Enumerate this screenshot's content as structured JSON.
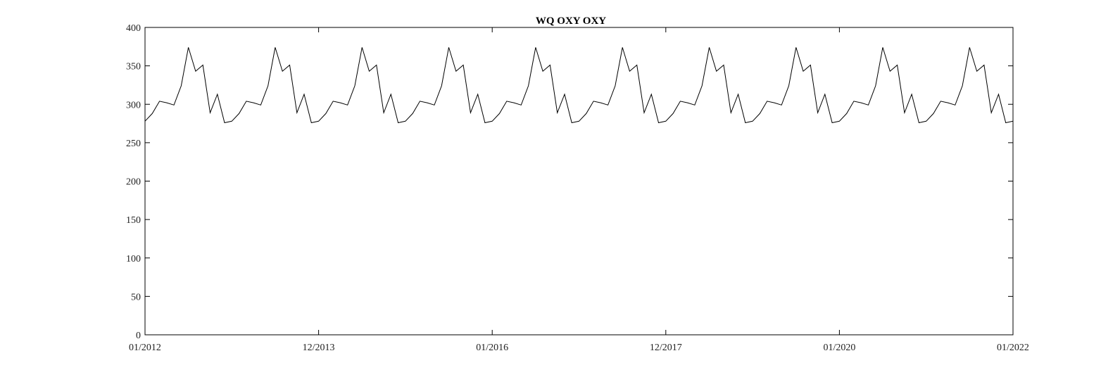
{
  "chart_data": {
    "type": "line",
    "title": "WQ OXY OXY",
    "xlabel": "",
    "ylabel": "",
    "x_start": "2012-01",
    "x_end": "2022-01",
    "x_ticks": [
      "01/2012",
      "12/2013",
      "01/2016",
      "12/2017",
      "01/2020",
      "01/2022"
    ],
    "y_ticks": [
      "0",
      "50",
      "100",
      "150",
      "200",
      "250",
      "300",
      "350",
      "400"
    ],
    "ylim": [
      0,
      400
    ],
    "grid": false,
    "line_color": "#000000",
    "series": [
      {
        "x": [
          "2012-01",
          "2012-02",
          "2012-03",
          "2012-04",
          "2012-05",
          "2012-06",
          "2012-07",
          "2012-08",
          "2012-09",
          "2012-10",
          "2012-11",
          "2012-12",
          "2013-01",
          "2013-02",
          "2013-03",
          "2013-04",
          "2013-05",
          "2013-06",
          "2013-07",
          "2013-08",
          "2013-09",
          "2013-10",
          "2013-11",
          "2013-12",
          "2014-01",
          "2014-02",
          "2014-03",
          "2014-04",
          "2014-05",
          "2014-06",
          "2014-07",
          "2014-08",
          "2014-09",
          "2014-10",
          "2014-11",
          "2014-12",
          "2015-01",
          "2015-02",
          "2015-03",
          "2015-04",
          "2015-05",
          "2015-06",
          "2015-07",
          "2015-08",
          "2015-09",
          "2015-10",
          "2015-11",
          "2015-12",
          "2016-01",
          "2016-02",
          "2016-03",
          "2016-04",
          "2016-05",
          "2016-06",
          "2016-07",
          "2016-08",
          "2016-09",
          "2016-10",
          "2016-11",
          "2016-12",
          "2017-01",
          "2017-02",
          "2017-03",
          "2017-04",
          "2017-05",
          "2017-06",
          "2017-07",
          "2017-08",
          "2017-09",
          "2017-10",
          "2017-11",
          "2017-12",
          "2018-01",
          "2018-02",
          "2018-03",
          "2018-04",
          "2018-05",
          "2018-06",
          "2018-07",
          "2018-08",
          "2018-09",
          "2018-10",
          "2018-11",
          "2018-12",
          "2019-01",
          "2019-02",
          "2019-03",
          "2019-04",
          "2019-05",
          "2019-06",
          "2019-07",
          "2019-08",
          "2019-09",
          "2019-10",
          "2019-11",
          "2019-12",
          "2020-01",
          "2020-02",
          "2020-03",
          "2020-04",
          "2020-05",
          "2020-06",
          "2020-07",
          "2020-08",
          "2020-09",
          "2020-10",
          "2020-11",
          "2020-12",
          "2021-01",
          "2021-02",
          "2021-03",
          "2021-04",
          "2021-05",
          "2021-06",
          "2021-07",
          "2021-08",
          "2021-09",
          "2021-10",
          "2021-11",
          "2021-12"
        ],
        "values": [
          278,
          288,
          304,
          302,
          299,
          324,
          374,
          343,
          351,
          289,
          313,
          276,
          278,
          288,
          304,
          302,
          299,
          324,
          374,
          343,
          351,
          289,
          313,
          276,
          278,
          288,
          304,
          302,
          299,
          324,
          374,
          343,
          351,
          289,
          313,
          276,
          278,
          288,
          304,
          302,
          299,
          324,
          374,
          343,
          351,
          289,
          313,
          276,
          278,
          288,
          304,
          302,
          299,
          324,
          374,
          343,
          351,
          289,
          313,
          276,
          278,
          288,
          304,
          302,
          299,
          324,
          374,
          343,
          351,
          289,
          313,
          276,
          278,
          288,
          304,
          302,
          299,
          324,
          374,
          343,
          351,
          289,
          313,
          276,
          278,
          288,
          304,
          302,
          299,
          324,
          374,
          343,
          351,
          289,
          313,
          276,
          278,
          288,
          304,
          302,
          299,
          324,
          374,
          343,
          351,
          289,
          313,
          276,
          278,
          288,
          304,
          302,
          299,
          324,
          374,
          343,
          351,
          289,
          313,
          276
        ]
      }
    ]
  }
}
